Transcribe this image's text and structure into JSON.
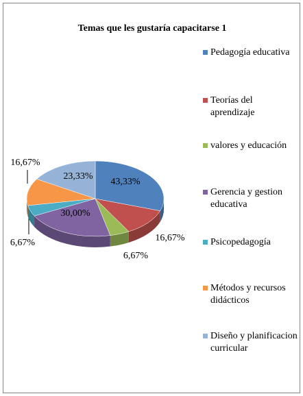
{
  "chart_data": {
    "type": "pie3d",
    "title": "Temas que les gustaría capacitarse 1",
    "categories": [
      "Pedagogía educativa",
      "Teorías del aprendizaje",
      "valores y educación",
      "Gerencia y gestion educativa",
      "Psicopedagogía",
      "Métodos y recursos didácticos",
      "Diseño y planificacion curricular"
    ],
    "values": [
      43.33,
      16.67,
      6.67,
      30.0,
      6.67,
      16.67,
      23.33
    ],
    "value_labels": [
      "43,33%",
      "16,67%",
      "6,67%",
      "30,00%",
      "6,67%",
      "16,67%",
      "23,33%"
    ],
    "colors": [
      "#4f81bd",
      "#c0504d",
      "#9bbb59",
      "#8064a2",
      "#4bacc6",
      "#f79646",
      "#95b3d7"
    ],
    "legend": "right"
  }
}
